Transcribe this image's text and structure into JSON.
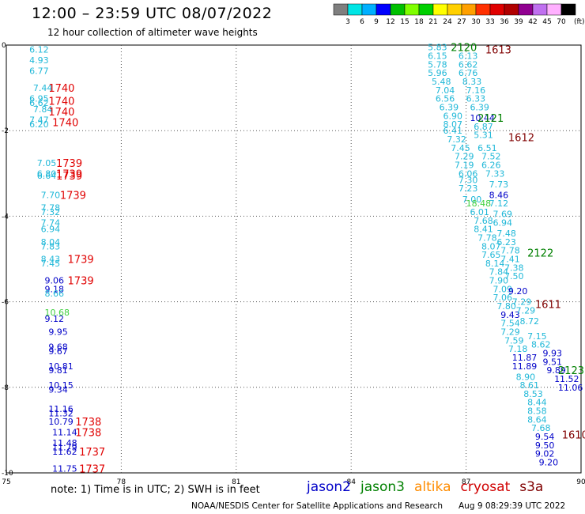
{
  "header": {
    "title": "12:00 – 23:59 UTC 08/07/2022",
    "subtitle": "12 hour collection of altimeter wave heights"
  },
  "colorbar": {
    "unit": "(ft)",
    "ticks": [
      "3",
      "6",
      "9",
      "12",
      "15",
      "18",
      "21",
      "24",
      "27",
      "30",
      "33",
      "36",
      "39",
      "42",
      "45",
      "70"
    ],
    "colors": [
      "#7f7f7f",
      "#00e5e5",
      "#00b0ff",
      "#0000ff",
      "#00c000",
      "#7fff00",
      "#00d000",
      "#ffff00",
      "#ffd000",
      "#ffa000",
      "#ff3000",
      "#e00000",
      "#b00000",
      "#900090",
      "#c070f0",
      "#ffb0ff",
      "#000000"
    ]
  },
  "footer": {
    "note": "note: 1) Time is in UTC; 2) SWH is in feet",
    "credit": "NOAA/NESDIS Center for Satellite Applications and Research",
    "timestamp": "Aug  9 08:29:39 UTC 2022"
  },
  "legend": [
    {
      "name": "jason2",
      "color": "#0000c8"
    },
    {
      "name": "jason3",
      "color": "#008000"
    },
    {
      "name": "altika",
      "color": "#ff8c00"
    },
    {
      "name": "cryosat",
      "color": "#d00000"
    },
    {
      "name": "s3a",
      "color": "#800000"
    }
  ],
  "chart_data": {
    "type": "scatter",
    "xlim": [
      75,
      90
    ],
    "ylim": [
      -10,
      0
    ],
    "xticks": [
      "75",
      "78",
      "81",
      "84",
      "87",
      "90"
    ],
    "yticks": [
      "0",
      "-2",
      "-4",
      "-6",
      "-8",
      "-10"
    ],
    "grid": true,
    "colors": {
      "cyan": "#20b8d8",
      "blue": "#0000c8",
      "red": "#e00000",
      "green": "#008000",
      "maroon": "#800000",
      "lightgreen": "#40d040"
    },
    "wave_heights": [
      {
        "x": 75.6,
        "y": -0.1,
        "v": "6.12",
        "c": "cyan"
      },
      {
        "x": 75.6,
        "y": -0.35,
        "v": "4.93",
        "c": "cyan"
      },
      {
        "x": 75.6,
        "y": -0.6,
        "v": "6.77",
        "c": "cyan"
      },
      {
        "x": 75.7,
        "y": -1.0,
        "v": "7.44",
        "c": "cyan"
      },
      {
        "x": 75.6,
        "y": -1.25,
        "v": "6.95",
        "c": "cyan"
      },
      {
        "x": 75.6,
        "y": -1.35,
        "v": "6.62",
        "c": "cyan"
      },
      {
        "x": 75.7,
        "y": -1.5,
        "v": "7.84",
        "c": "cyan"
      },
      {
        "x": 75.6,
        "y": -1.75,
        "v": "7.47",
        "c": "cyan"
      },
      {
        "x": 75.6,
        "y": -1.85,
        "v": "6.20",
        "c": "cyan"
      },
      {
        "x": 75.8,
        "y": -2.75,
        "v": "7.05",
        "c": "cyan"
      },
      {
        "x": 75.8,
        "y": -3.0,
        "v": "6.80",
        "c": "cyan"
      },
      {
        "x": 75.8,
        "y": -3.05,
        "v": "6.64",
        "c": "cyan"
      },
      {
        "x": 75.9,
        "y": -3.5,
        "v": "7.70",
        "c": "cyan"
      },
      {
        "x": 75.9,
        "y": -3.8,
        "v": "7.78",
        "c": "cyan"
      },
      {
        "x": 75.9,
        "y": -3.9,
        "v": "7.32",
        "c": "cyan"
      },
      {
        "x": 75.9,
        "y": -4.15,
        "v": "7.74",
        "c": "cyan"
      },
      {
        "x": 75.9,
        "y": -4.3,
        "v": "6.94",
        "c": "cyan"
      },
      {
        "x": 75.9,
        "y": -4.6,
        "v": "8.04",
        "c": "cyan"
      },
      {
        "x": 75.9,
        "y": -4.7,
        "v": "7.83",
        "c": "cyan"
      },
      {
        "x": 75.9,
        "y": -5.0,
        "v": "8.43",
        "c": "cyan"
      },
      {
        "x": 75.9,
        "y": -5.1,
        "v": "7.45",
        "c": "cyan"
      },
      {
        "x": 76.0,
        "y": -5.5,
        "v": "9.06",
        "c": "blue"
      },
      {
        "x": 76.0,
        "y": -5.7,
        "v": "9.18",
        "c": "blue"
      },
      {
        "x": 76.0,
        "y": -5.8,
        "v": "8.66",
        "c": "cyan"
      },
      {
        "x": 76.0,
        "y": -6.25,
        "v": "10.68",
        "c": "lightgreen"
      },
      {
        "x": 76.0,
        "y": -6.4,
        "v": "9.12",
        "c": "blue"
      },
      {
        "x": 76.1,
        "y": -6.7,
        "v": "9.95",
        "c": "blue"
      },
      {
        "x": 76.1,
        "y": -7.05,
        "v": "9.68",
        "c": "blue"
      },
      {
        "x": 76.1,
        "y": -7.15,
        "v": "9.67",
        "c": "blue"
      },
      {
        "x": 76.1,
        "y": -7.5,
        "v": "10.81",
        "c": "blue"
      },
      {
        "x": 76.1,
        "y": -7.6,
        "v": "9.81",
        "c": "blue"
      },
      {
        "x": 76.1,
        "y": -7.95,
        "v": "10.15",
        "c": "blue"
      },
      {
        "x": 76.1,
        "y": -8.05,
        "v": "9.34",
        "c": "blue"
      },
      {
        "x": 76.1,
        "y": -8.5,
        "v": "11.16",
        "c": "blue"
      },
      {
        "x": 76.1,
        "y": -8.6,
        "v": "11.32",
        "c": "blue"
      },
      {
        "x": 76.1,
        "y": -8.8,
        "v": "10.79",
        "c": "blue"
      },
      {
        "x": 76.2,
        "y": -9.05,
        "v": "11.14",
        "c": "blue"
      },
      {
        "x": 76.2,
        "y": -9.3,
        "v": "11.48",
        "c": "blue"
      },
      {
        "x": 76.2,
        "y": -9.4,
        "v": "11.79",
        "c": "blue"
      },
      {
        "x": 76.2,
        "y": -9.5,
        "v": "11.62",
        "c": "blue"
      },
      {
        "x": 76.2,
        "y": -9.9,
        "v": "11.75",
        "c": "blue"
      },
      {
        "x": 86.0,
        "y": -0.05,
        "v": "5.83",
        "c": "cyan"
      },
      {
        "x": 86.0,
        "y": -0.25,
        "v": "6.15",
        "c": "cyan"
      },
      {
        "x": 86.0,
        "y": -0.45,
        "v": "5.78",
        "c": "cyan"
      },
      {
        "x": 86.0,
        "y": -0.65,
        "v": "5.96",
        "c": "cyan"
      },
      {
        "x": 86.1,
        "y": -0.85,
        "v": "5.48",
        "c": "cyan"
      },
      {
        "x": 86.2,
        "y": -1.05,
        "v": "7.04",
        "c": "cyan"
      },
      {
        "x": 86.2,
        "y": -1.25,
        "v": "6.56",
        "c": "cyan"
      },
      {
        "x": 86.3,
        "y": -1.45,
        "v": "6.39",
        "c": "cyan"
      },
      {
        "x": 86.4,
        "y": -1.65,
        "v": "6.90",
        "c": "cyan"
      },
      {
        "x": 86.4,
        "y": -1.85,
        "v": "8.07",
        "c": "cyan"
      },
      {
        "x": 86.4,
        "y": -2.0,
        "v": "6.41",
        "c": "cyan"
      },
      {
        "x": 86.5,
        "y": -2.2,
        "v": "7.32",
        "c": "cyan"
      },
      {
        "x": 86.6,
        "y": -2.4,
        "v": "7.45",
        "c": "cyan"
      },
      {
        "x": 86.7,
        "y": -2.6,
        "v": "7.29",
        "c": "cyan"
      },
      {
        "x": 86.7,
        "y": -2.8,
        "v": "7.19",
        "c": "cyan"
      },
      {
        "x": 86.8,
        "y": -3.0,
        "v": "6.06",
        "c": "cyan"
      },
      {
        "x": 86.8,
        "y": -3.15,
        "v": "7.30",
        "c": "cyan"
      },
      {
        "x": 86.8,
        "y": -3.35,
        "v": "7.23",
        "c": "cyan"
      },
      {
        "x": 86.9,
        "y": -3.6,
        "v": "7.00",
        "c": "cyan"
      },
      {
        "x": 87.0,
        "y": -3.7,
        "v": "18.48",
        "c": "lightgreen"
      },
      {
        "x": 87.1,
        "y": -3.9,
        "v": "6.01",
        "c": "cyan"
      },
      {
        "x": 87.2,
        "y": -4.1,
        "v": "7.68",
        "c": "cyan"
      },
      {
        "x": 87.2,
        "y": -4.3,
        "v": "8.41",
        "c": "cyan"
      },
      {
        "x": 87.3,
        "y": -4.5,
        "v": "7.78",
        "c": "cyan"
      },
      {
        "x": 87.4,
        "y": -4.7,
        "v": "8.07",
        "c": "cyan"
      },
      {
        "x": 87.4,
        "y": -4.9,
        "v": "7.65",
        "c": "cyan"
      },
      {
        "x": 87.5,
        "y": -5.1,
        "v": "8.14",
        "c": "cyan"
      },
      {
        "x": 87.6,
        "y": -5.3,
        "v": "7.84",
        "c": "cyan"
      },
      {
        "x": 87.6,
        "y": -5.5,
        "v": "7.90",
        "c": "cyan"
      },
      {
        "x": 87.7,
        "y": -5.7,
        "v": "7.09",
        "c": "cyan"
      },
      {
        "x": 87.7,
        "y": -5.9,
        "v": "7.06",
        "c": "cyan"
      },
      {
        "x": 87.8,
        "y": -6.1,
        "v": "7.80",
        "c": "cyan"
      },
      {
        "x": 87.9,
        "y": -6.3,
        "v": "9.43",
        "c": "blue"
      },
      {
        "x": 87.9,
        "y": -6.5,
        "v": "7.54",
        "c": "cyan"
      },
      {
        "x": 87.9,
        "y": -6.7,
        "v": "7.29",
        "c": "cyan"
      },
      {
        "x": 88.0,
        "y": -6.9,
        "v": "7.59",
        "c": "cyan"
      },
      {
        "x": 88.1,
        "y": -7.1,
        "v": "7.18",
        "c": "cyan"
      },
      {
        "x": 88.2,
        "y": -7.3,
        "v": "11.87",
        "c": "blue"
      },
      {
        "x": 88.2,
        "y": -7.5,
        "v": "11.89",
        "c": "blue"
      },
      {
        "x": 88.3,
        "y": -7.75,
        "v": "8.90",
        "c": "cyan"
      },
      {
        "x": 88.4,
        "y": -7.95,
        "v": "8.61",
        "c": "cyan"
      },
      {
        "x": 88.5,
        "y": -8.15,
        "v": "8.53",
        "c": "cyan"
      },
      {
        "x": 88.6,
        "y": -8.35,
        "v": "8.44",
        "c": "cyan"
      },
      {
        "x": 88.6,
        "y": -8.55,
        "v": "8.58",
        "c": "cyan"
      },
      {
        "x": 88.6,
        "y": -8.75,
        "v": "8.64",
        "c": "cyan"
      },
      {
        "x": 88.7,
        "y": -8.95,
        "v": "7.68",
        "c": "cyan"
      },
      {
        "x": 88.8,
        "y": -9.15,
        "v": "9.54",
        "c": "blue"
      },
      {
        "x": 88.8,
        "y": -9.35,
        "v": "9.50",
        "c": "blue"
      },
      {
        "x": 88.8,
        "y": -9.55,
        "v": "9.02",
        "c": "blue"
      },
      {
        "x": 88.9,
        "y": -9.75,
        "v": "9.20",
        "c": "blue"
      },
      {
        "x": 86.8,
        "y": -0.25,
        "v": "6.13",
        "c": "cyan"
      },
      {
        "x": 86.8,
        "y": -0.45,
        "v": "6.62",
        "c": "cyan"
      },
      {
        "x": 86.8,
        "y": -0.65,
        "v": "6.76",
        "c": "cyan"
      },
      {
        "x": 86.9,
        "y": -0.85,
        "v": "8.33",
        "c": "cyan"
      },
      {
        "x": 87.0,
        "y": -1.05,
        "v": "7.16",
        "c": "cyan"
      },
      {
        "x": 87.0,
        "y": -1.25,
        "v": "6.33",
        "c": "cyan"
      },
      {
        "x": 87.1,
        "y": -1.45,
        "v": "6.39",
        "c": "cyan"
      },
      {
        "x": 87.1,
        "y": -1.7,
        "v": "10.44",
        "c": "blue"
      },
      {
        "x": 87.2,
        "y": -1.9,
        "v": "6.87",
        "c": "cyan"
      },
      {
        "x": 87.2,
        "y": -2.1,
        "v": "5.31",
        "c": "cyan"
      },
      {
        "x": 87.3,
        "y": -2.4,
        "v": "6.51",
        "c": "cyan"
      },
      {
        "x": 87.4,
        "y": -2.6,
        "v": "7.52",
        "c": "cyan"
      },
      {
        "x": 87.4,
        "y": -2.8,
        "v": "6.26",
        "c": "cyan"
      },
      {
        "x": 87.5,
        "y": -3.0,
        "v": "7.33",
        "c": "cyan"
      },
      {
        "x": 87.6,
        "y": -3.25,
        "v": "7.73",
        "c": "cyan"
      },
      {
        "x": 87.6,
        "y": -3.5,
        "v": "8.46",
        "c": "blue"
      },
      {
        "x": 87.6,
        "y": -3.7,
        "v": "7.12",
        "c": "cyan"
      },
      {
        "x": 87.7,
        "y": -3.95,
        "v": "7.69",
        "c": "cyan"
      },
      {
        "x": 87.7,
        "y": -4.15,
        "v": "6.94",
        "c": "cyan"
      },
      {
        "x": 87.8,
        "y": -4.4,
        "v": "7.48",
        "c": "cyan"
      },
      {
        "x": 87.8,
        "y": -4.6,
        "v": "6.23",
        "c": "cyan"
      },
      {
        "x": 87.9,
        "y": -4.8,
        "v": "7.78",
        "c": "cyan"
      },
      {
        "x": 87.9,
        "y": -5.0,
        "v": "7.41",
        "c": "cyan"
      },
      {
        "x": 88.0,
        "y": -5.2,
        "v": "7.38",
        "c": "cyan"
      },
      {
        "x": 88.0,
        "y": -5.4,
        "v": "7.50",
        "c": "cyan"
      },
      {
        "x": 88.1,
        "y": -5.75,
        "v": "9.20",
        "c": "blue"
      },
      {
        "x": 88.2,
        "y": -6.0,
        "v": "7.29",
        "c": "cyan"
      },
      {
        "x": 88.3,
        "y": -6.2,
        "v": "7.29",
        "c": "cyan"
      },
      {
        "x": 88.4,
        "y": -6.45,
        "v": "8.72",
        "c": "cyan"
      },
      {
        "x": 88.6,
        "y": -6.8,
        "v": "7.15",
        "c": "cyan"
      },
      {
        "x": 88.7,
        "y": -7.0,
        "v": "8.62",
        "c": "cyan"
      },
      {
        "x": 89.0,
        "y": -7.2,
        "v": "9.93",
        "c": "blue"
      },
      {
        "x": 89.0,
        "y": -7.4,
        "v": "9.51",
        "c": "blue"
      },
      {
        "x": 89.1,
        "y": -7.6,
        "v": "9.89",
        "c": "blue"
      },
      {
        "x": 89.3,
        "y": -7.8,
        "v": "11.52",
        "c": "blue"
      },
      {
        "x": 89.4,
        "y": -8.0,
        "v": "11.06",
        "c": "blue"
      }
    ],
    "passes": [
      {
        "x": 76.1,
        "y": -1.0,
        "v": "1740",
        "c": "red"
      },
      {
        "x": 76.1,
        "y": -1.3,
        "v": "1740",
        "c": "red"
      },
      {
        "x": 76.1,
        "y": -1.55,
        "v": "1740",
        "c": "red"
      },
      {
        "x": 76.2,
        "y": -1.8,
        "v": "1740",
        "c": "red"
      },
      {
        "x": 76.3,
        "y": -2.75,
        "v": "1739",
        "c": "red"
      },
      {
        "x": 76.3,
        "y": -3.0,
        "v": "1739",
        "c": "red"
      },
      {
        "x": 76.3,
        "y": -3.05,
        "v": "1739",
        "c": "red"
      },
      {
        "x": 76.4,
        "y": -3.5,
        "v": "1739",
        "c": "red"
      },
      {
        "x": 76.6,
        "y": -5.0,
        "v": "1739",
        "c": "red"
      },
      {
        "x": 76.6,
        "y": -5.5,
        "v": "1739",
        "c": "red"
      },
      {
        "x": 76.8,
        "y": -8.8,
        "v": "1738",
        "c": "red"
      },
      {
        "x": 76.8,
        "y": -9.05,
        "v": "1738",
        "c": "red"
      },
      {
        "x": 76.9,
        "y": -9.5,
        "v": "1737",
        "c": "red"
      },
      {
        "x": 76.9,
        "y": -9.9,
        "v": "1737",
        "c": "red"
      },
      {
        "x": 86.6,
        "y": -0.05,
        "v": "2120",
        "c": "green"
      },
      {
        "x": 87.5,
        "y": -0.1,
        "v": "1613",
        "c": "maroon"
      },
      {
        "x": 87.3,
        "y": -1.7,
        "v": "2121",
        "c": "green"
      },
      {
        "x": 88.1,
        "y": -2.15,
        "v": "1612",
        "c": "maroon"
      },
      {
        "x": 88.6,
        "y": -4.85,
        "v": "2122",
        "c": "green"
      },
      {
        "x": 88.8,
        "y": -6.05,
        "v": "1611",
        "c": "maroon"
      },
      {
        "x": 89.4,
        "y": -7.6,
        "v": "2123",
        "c": "green"
      },
      {
        "x": 89.5,
        "y": -9.1,
        "v": "1610",
        "c": "maroon"
      }
    ]
  }
}
